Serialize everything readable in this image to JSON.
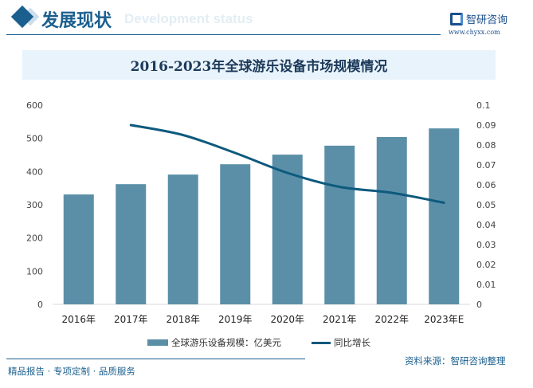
{
  "header": {
    "title": "发展现状",
    "ghost_subtitle": "Development status",
    "logo_name": "智研咨询",
    "logo_url": "www.chyxx.com"
  },
  "chart_data": {
    "type": "bar+line",
    "title": "2016-2023年全球游乐设备市场规模情况",
    "categories": [
      "2016年",
      "2017年",
      "2018年",
      "2019年",
      "2020年",
      "2021年",
      "2022年",
      "2023年E"
    ],
    "series": [
      {
        "name": "全球游乐设备规模：亿美元",
        "type": "bar",
        "axis": "left",
        "color": "#5b8fa8",
        "values": [
          331,
          362,
          391,
          422,
          451,
          478,
          504,
          530
        ]
      },
      {
        "name": "同比增长",
        "type": "line",
        "axis": "right",
        "color": "#0e5a7e",
        "values": [
          null,
          0.09,
          0.085,
          0.076,
          0.066,
          0.059,
          0.056,
          0.051
        ]
      }
    ],
    "left_axis": {
      "ylim": [
        0,
        600
      ],
      "ticks": [
        "0",
        "100",
        "200",
        "300",
        "400",
        "500",
        "600"
      ]
    },
    "right_axis": {
      "ylim": [
        0,
        0.1
      ],
      "ticks": [
        "0",
        "0.01",
        "0.02",
        "0.03",
        "0.04",
        "0.05",
        "0.06",
        "0.07",
        "0.08",
        "0.09",
        "0.1"
      ]
    },
    "grid": false,
    "legend": "bottom"
  },
  "footer": {
    "left": "精品报告 · 专项定制 · 品质服务",
    "source": "资料来源：智研咨询整理"
  }
}
